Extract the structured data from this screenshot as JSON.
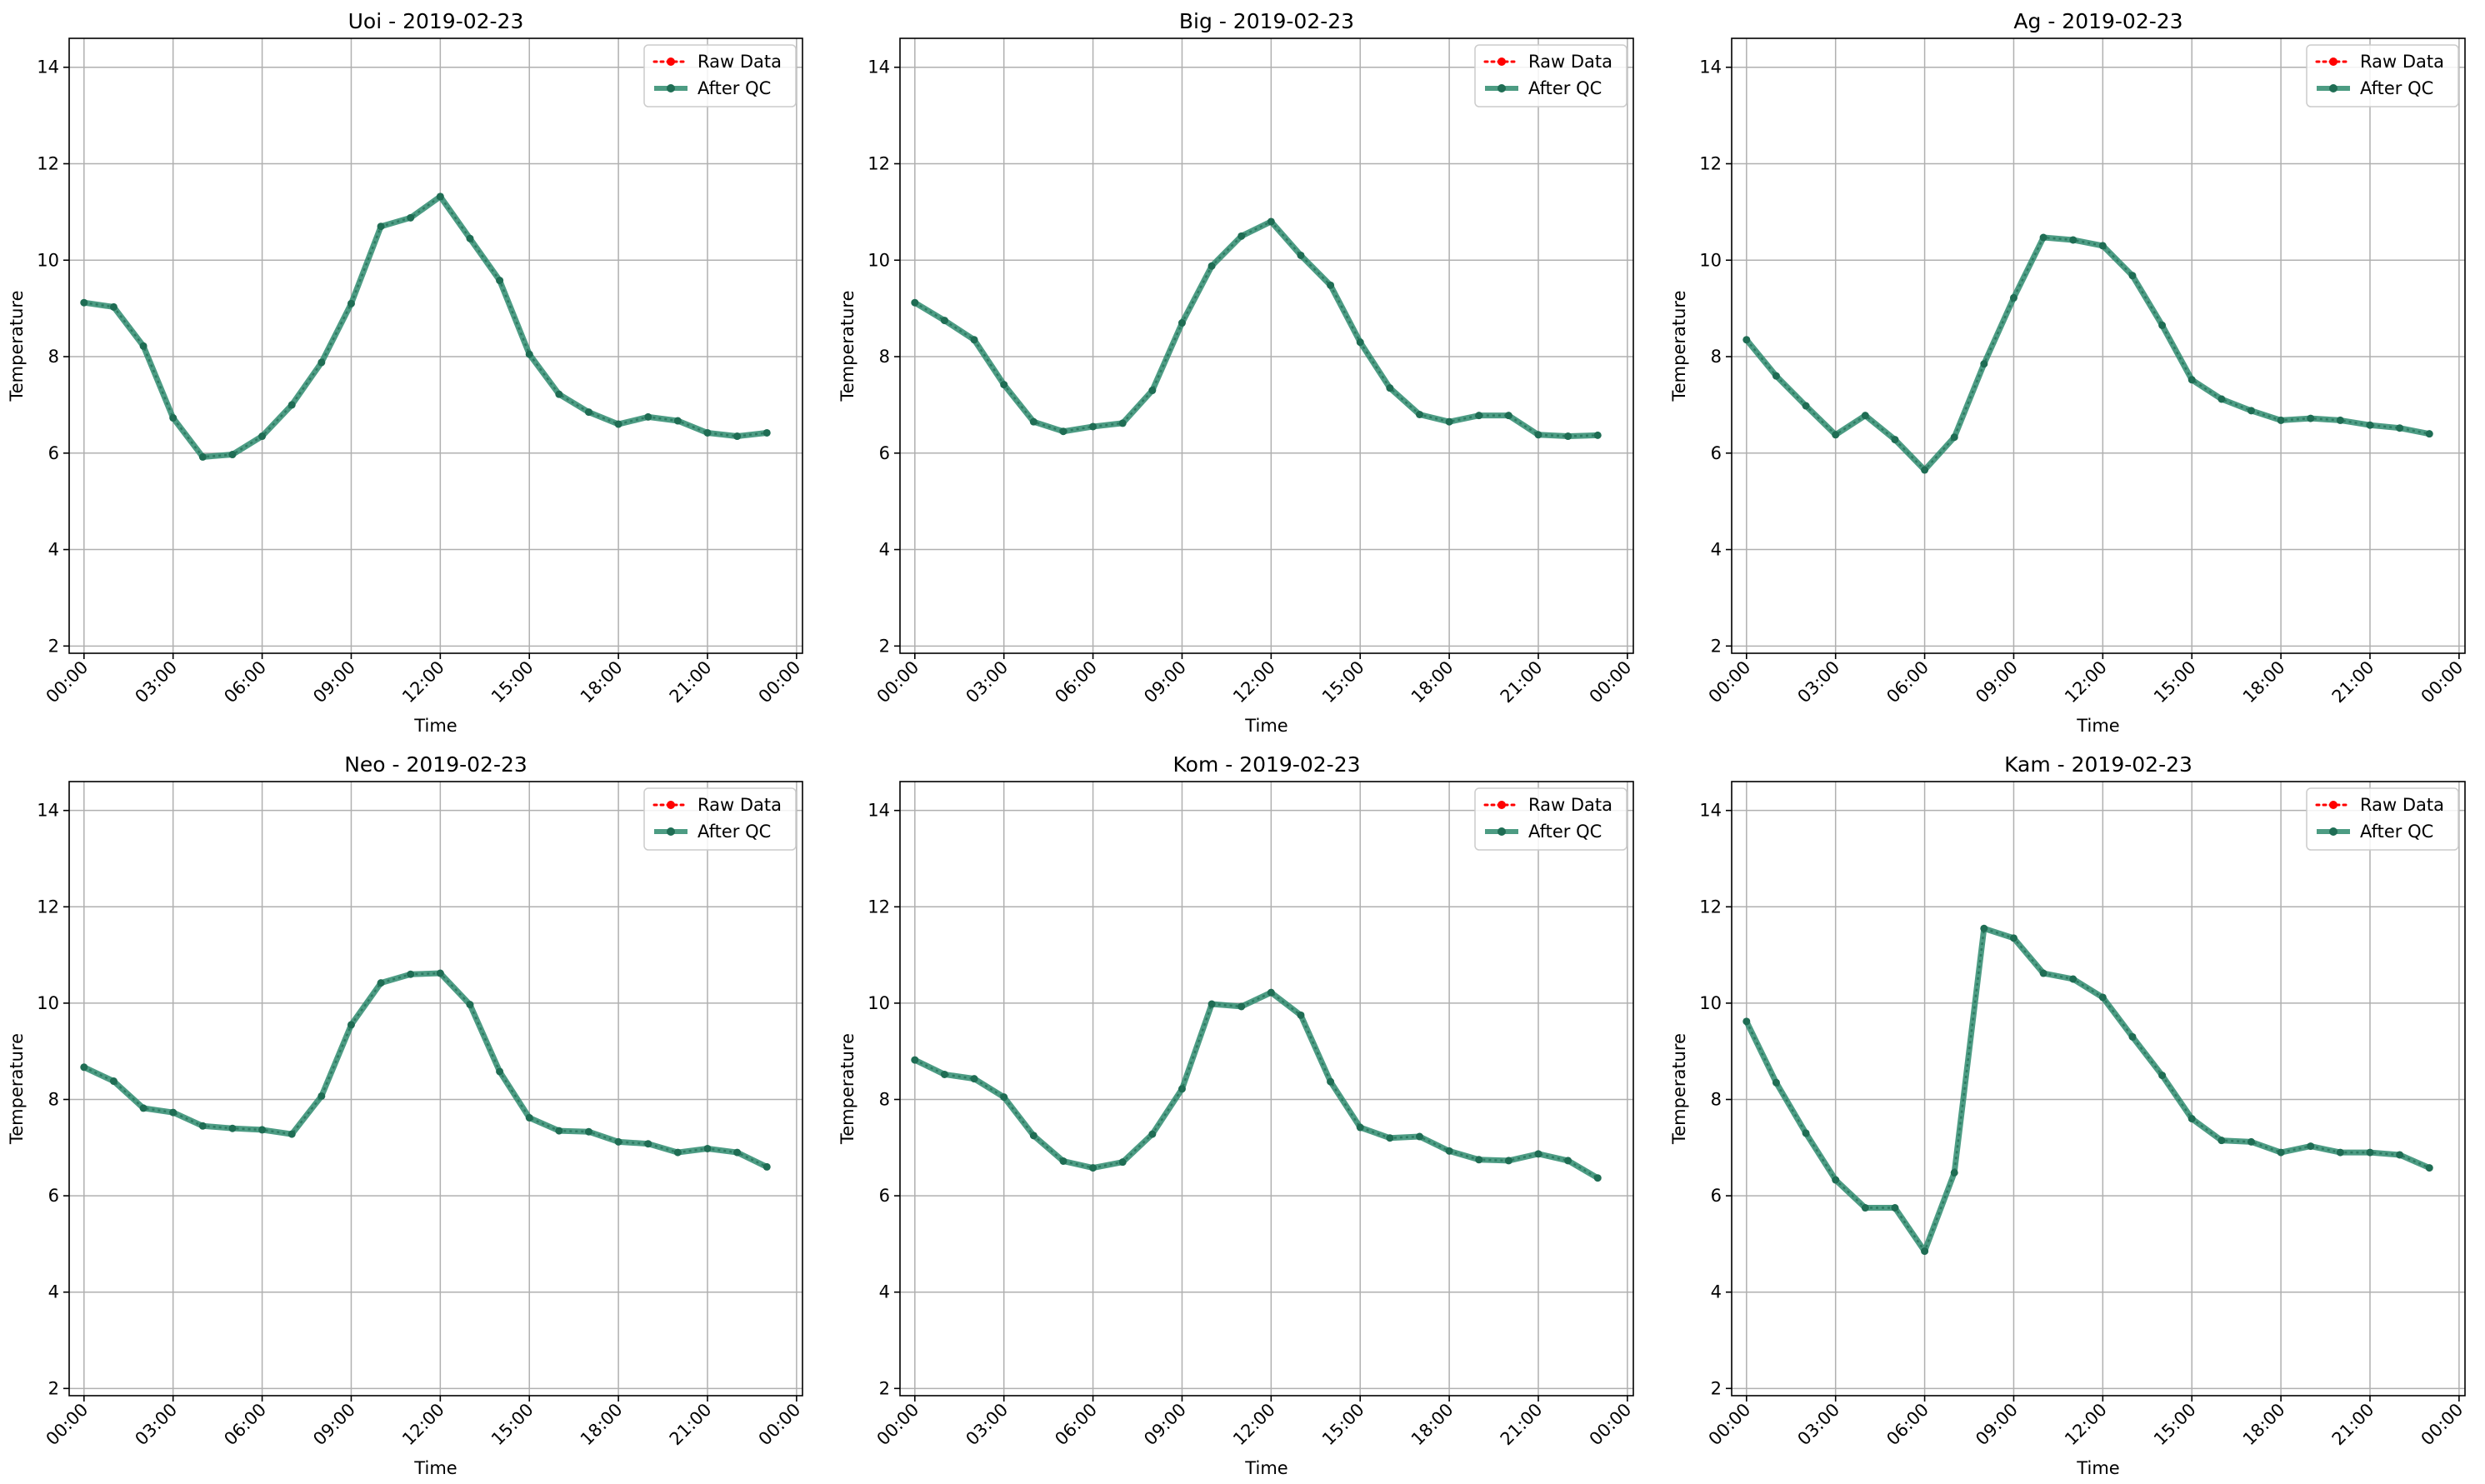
{
  "colors": {
    "raw": "#ff0000",
    "qc": "#2e8b6e",
    "qc_marker": "#1f6d54",
    "grid": "#b0b0b0",
    "axis": "#000000",
    "legend_border": "#cccccc"
  },
  "chart_data": [
    {
      "type": "line",
      "title": "Uoi - 2019-02-23",
      "xlabel": "Time",
      "ylabel": "Temperature",
      "x_ticks": [
        "00:00",
        "03:00",
        "06:00",
        "09:00",
        "12:00",
        "15:00",
        "18:00",
        "21:00",
        "00:00"
      ],
      "x_hours": [
        0,
        3,
        6,
        9,
        12,
        15,
        18,
        21,
        24
      ],
      "xlim": [
        -0.5,
        24.2
      ],
      "y_ticks": [
        2,
        4,
        6,
        8,
        10,
        12,
        14
      ],
      "ylim": [
        1.85,
        14.6
      ],
      "grid": true,
      "legend": "top-right",
      "x": [
        0,
        1,
        2,
        3,
        4,
        5,
        6,
        7,
        8,
        9,
        10,
        11,
        12,
        13,
        14,
        15,
        16,
        17,
        18,
        19,
        20,
        21,
        22,
        23
      ],
      "series": [
        {
          "name": "Raw Data",
          "values": [
            9.12,
            9.03,
            8.22,
            6.73,
            5.92,
            5.97,
            6.35,
            7.0,
            7.88,
            9.1,
            10.7,
            10.88,
            11.32,
            10.45,
            9.58,
            8.05,
            7.22,
            6.85,
            6.6,
            6.75,
            6.67,
            6.42,
            6.35,
            6.42
          ]
        },
        {
          "name": "After QC",
          "values": [
            9.12,
            9.03,
            8.22,
            6.73,
            5.92,
            5.97,
            6.35,
            7.0,
            7.88,
            9.1,
            10.7,
            10.88,
            11.32,
            10.45,
            9.58,
            8.05,
            7.22,
            6.85,
            6.6,
            6.75,
            6.67,
            6.42,
            6.35,
            6.42
          ]
        }
      ]
    },
    {
      "type": "line",
      "title": "Big - 2019-02-23",
      "xlabel": "Time",
      "ylabel": "Temperature",
      "x_ticks": [
        "00:00",
        "03:00",
        "06:00",
        "09:00",
        "12:00",
        "15:00",
        "18:00",
        "21:00",
        "00:00"
      ],
      "x_hours": [
        0,
        3,
        6,
        9,
        12,
        15,
        18,
        21,
        24
      ],
      "xlim": [
        -0.5,
        24.2
      ],
      "y_ticks": [
        2,
        4,
        6,
        8,
        10,
        12,
        14
      ],
      "ylim": [
        1.85,
        14.6
      ],
      "grid": true,
      "legend": "top-right",
      "x": [
        0,
        1,
        2,
        3,
        4,
        5,
        6,
        7,
        8,
        9,
        10,
        11,
        12,
        13,
        14,
        15,
        16,
        17,
        18,
        19,
        20,
        21,
        22,
        23
      ],
      "series": [
        {
          "name": "Raw Data",
          "values": [
            9.12,
            8.75,
            8.35,
            7.42,
            6.65,
            6.45,
            6.55,
            6.62,
            7.3,
            8.7,
            9.88,
            10.5,
            10.8,
            10.1,
            9.48,
            8.3,
            7.35,
            6.8,
            6.65,
            6.78,
            6.78,
            6.38,
            6.35,
            6.37
          ]
        },
        {
          "name": "After QC",
          "values": [
            9.12,
            8.75,
            8.35,
            7.42,
            6.65,
            6.45,
            6.55,
            6.62,
            7.3,
            8.7,
            9.88,
            10.5,
            10.8,
            10.1,
            9.48,
            8.3,
            7.35,
            6.8,
            6.65,
            6.78,
            6.78,
            6.38,
            6.35,
            6.37
          ]
        }
      ]
    },
    {
      "type": "line",
      "title": "Ag - 2019-02-23",
      "xlabel": "Time",
      "ylabel": "Temperature",
      "x_ticks": [
        "00:00",
        "03:00",
        "06:00",
        "09:00",
        "12:00",
        "15:00",
        "18:00",
        "21:00",
        "00:00"
      ],
      "x_hours": [
        0,
        3,
        6,
        9,
        12,
        15,
        18,
        21,
        24
      ],
      "xlim": [
        -0.5,
        24.2
      ],
      "y_ticks": [
        2,
        4,
        6,
        8,
        10,
        12,
        14
      ],
      "ylim": [
        1.85,
        14.6
      ],
      "grid": true,
      "legend": "top-right",
      "x": [
        0,
        1,
        2,
        3,
        4,
        5,
        6,
        7,
        8,
        9,
        10,
        11,
        12,
        13,
        14,
        15,
        16,
        17,
        18,
        19,
        20,
        21,
        22,
        23
      ],
      "series": [
        {
          "name": "Raw Data",
          "values": [
            8.35,
            7.6,
            6.98,
            6.38,
            6.78,
            6.28,
            5.65,
            6.33,
            7.85,
            9.22,
            10.47,
            10.42,
            10.3,
            9.68,
            8.65,
            7.52,
            7.12,
            6.88,
            6.68,
            6.72,
            6.68,
            6.58,
            6.52,
            6.4
          ]
        },
        {
          "name": "After QC",
          "values": [
            8.35,
            7.6,
            6.98,
            6.38,
            6.78,
            6.28,
            5.65,
            6.33,
            7.85,
            9.22,
            10.47,
            10.42,
            10.3,
            9.68,
            8.65,
            7.52,
            7.12,
            6.88,
            6.68,
            6.72,
            6.68,
            6.58,
            6.52,
            6.4
          ]
        }
      ]
    },
    {
      "type": "line",
      "title": "Neo - 2019-02-23",
      "xlabel": "Time",
      "ylabel": "Temperature",
      "x_ticks": [
        "00:00",
        "03:00",
        "06:00",
        "09:00",
        "12:00",
        "15:00",
        "18:00",
        "21:00",
        "00:00"
      ],
      "x_hours": [
        0,
        3,
        6,
        9,
        12,
        15,
        18,
        21,
        24
      ],
      "xlim": [
        -0.5,
        24.2
      ],
      "y_ticks": [
        2,
        4,
        6,
        8,
        10,
        12,
        14
      ],
      "ylim": [
        1.85,
        14.6
      ],
      "grid": true,
      "legend": "top-right",
      "x": [
        0,
        1,
        2,
        3,
        4,
        5,
        6,
        7,
        8,
        9,
        10,
        11,
        12,
        13,
        14,
        15,
        16,
        17,
        18,
        19,
        20,
        21,
        22,
        23
      ],
      "series": [
        {
          "name": "Raw Data",
          "values": [
            8.67,
            8.38,
            7.82,
            7.73,
            7.45,
            7.4,
            7.37,
            7.28,
            8.07,
            9.55,
            10.42,
            10.6,
            10.62,
            9.97,
            8.58,
            7.62,
            7.35,
            7.33,
            7.12,
            7.08,
            6.9,
            6.98,
            6.9,
            6.6
          ]
        },
        {
          "name": "After QC",
          "values": [
            8.67,
            8.38,
            7.82,
            7.73,
            7.45,
            7.4,
            7.37,
            7.28,
            8.07,
            9.55,
            10.42,
            10.6,
            10.62,
            9.97,
            8.58,
            7.62,
            7.35,
            7.33,
            7.12,
            7.08,
            6.9,
            6.98,
            6.9,
            6.6
          ]
        }
      ]
    },
    {
      "type": "line",
      "title": "Kom - 2019-02-23",
      "xlabel": "Time",
      "ylabel": "Temperature",
      "x_ticks": [
        "00:00",
        "03:00",
        "06:00",
        "09:00",
        "12:00",
        "15:00",
        "18:00",
        "21:00",
        "00:00"
      ],
      "x_hours": [
        0,
        3,
        6,
        9,
        12,
        15,
        18,
        21,
        24
      ],
      "xlim": [
        -0.5,
        24.2
      ],
      "y_ticks": [
        2,
        4,
        6,
        8,
        10,
        12,
        14
      ],
      "ylim": [
        1.85,
        14.6
      ],
      "grid": true,
      "legend": "top-right",
      "x": [
        0,
        1,
        2,
        3,
        4,
        5,
        6,
        7,
        8,
        9,
        10,
        11,
        12,
        13,
        14,
        15,
        16,
        17,
        18,
        19,
        20,
        21,
        22,
        23
      ],
      "series": [
        {
          "name": "Raw Data",
          "values": [
            8.82,
            8.52,
            8.43,
            8.05,
            7.25,
            6.72,
            6.58,
            6.7,
            7.28,
            8.22,
            9.98,
            9.93,
            10.22,
            9.75,
            8.37,
            7.42,
            7.2,
            7.23,
            6.93,
            6.75,
            6.73,
            6.87,
            6.73,
            6.37
          ]
        },
        {
          "name": "After QC",
          "values": [
            8.82,
            8.52,
            8.43,
            8.05,
            7.25,
            6.72,
            6.58,
            6.7,
            7.28,
            8.22,
            9.98,
            9.93,
            10.22,
            9.75,
            8.37,
            7.42,
            7.2,
            7.23,
            6.93,
            6.75,
            6.73,
            6.87,
            6.73,
            6.37
          ]
        }
      ]
    },
    {
      "type": "line",
      "title": "Kam - 2019-02-23",
      "xlabel": "Time",
      "ylabel": "Temperature",
      "x_ticks": [
        "00:00",
        "03:00",
        "06:00",
        "09:00",
        "12:00",
        "15:00",
        "18:00",
        "21:00",
        "00:00"
      ],
      "x_hours": [
        0,
        3,
        6,
        9,
        12,
        15,
        18,
        21,
        24
      ],
      "xlim": [
        -0.5,
        24.2
      ],
      "y_ticks": [
        2,
        4,
        6,
        8,
        10,
        12,
        14
      ],
      "ylim": [
        1.85,
        14.6
      ],
      "grid": true,
      "legend": "top-right",
      "x": [
        0,
        1,
        2,
        3,
        4,
        5,
        6,
        7,
        8,
        9,
        10,
        11,
        12,
        13,
        14,
        15,
        16,
        17,
        18,
        19,
        20,
        21,
        22,
        23
      ],
      "series": [
        {
          "name": "Raw Data",
          "values": [
            9.62,
            8.35,
            7.3,
            6.33,
            5.75,
            5.75,
            4.85,
            6.48,
            11.55,
            11.35,
            10.62,
            10.5,
            10.12,
            9.3,
            8.5,
            7.6,
            7.15,
            7.12,
            6.9,
            7.03,
            6.9,
            6.9,
            6.85,
            6.58
          ]
        },
        {
          "name": "After QC",
          "values": [
            9.62,
            8.35,
            7.3,
            6.33,
            5.75,
            5.75,
            4.85,
            6.48,
            11.55,
            11.35,
            10.62,
            10.5,
            10.12,
            9.3,
            8.5,
            7.6,
            7.15,
            7.12,
            6.9,
            7.03,
            6.9,
            6.9,
            6.85,
            6.58
          ]
        }
      ]
    }
  ]
}
